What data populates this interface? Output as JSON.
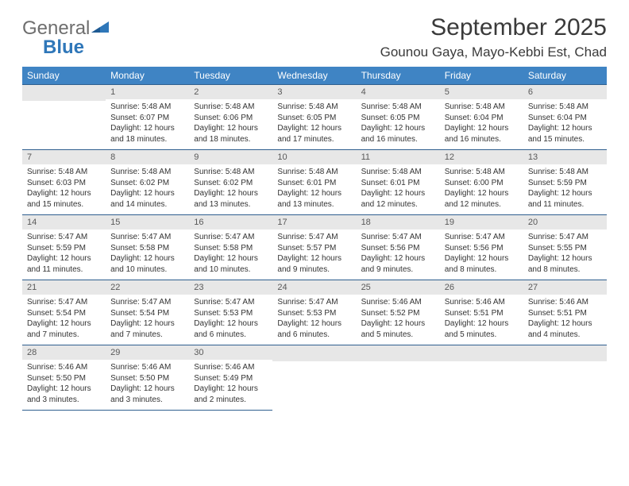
{
  "brand": {
    "word1": "General",
    "word2": "Blue"
  },
  "title": {
    "month": "September 2025",
    "location": "Gounou Gaya, Mayo-Kebbi Est, Chad"
  },
  "colors": {
    "header_bg": "#3f84c4",
    "header_text": "#ffffff",
    "daynum_bg": "#e7e7e7",
    "daynum_text": "#595959",
    "rule": "#2f5f8f",
    "body_text": "#333333",
    "logo_gray": "#6e6e6e",
    "logo_blue": "#2f77b9"
  },
  "weekdays": [
    "Sunday",
    "Monday",
    "Tuesday",
    "Wednesday",
    "Thursday",
    "Friday",
    "Saturday"
  ],
  "weeks": [
    [
      {
        "n": "",
        "sunrise": "",
        "sunset": "",
        "day": ""
      },
      {
        "n": "1",
        "sunrise": "Sunrise: 5:48 AM",
        "sunset": "Sunset: 6:07 PM",
        "day": "Daylight: 12 hours and 18 minutes."
      },
      {
        "n": "2",
        "sunrise": "Sunrise: 5:48 AM",
        "sunset": "Sunset: 6:06 PM",
        "day": "Daylight: 12 hours and 18 minutes."
      },
      {
        "n": "3",
        "sunrise": "Sunrise: 5:48 AM",
        "sunset": "Sunset: 6:05 PM",
        "day": "Daylight: 12 hours and 17 minutes."
      },
      {
        "n": "4",
        "sunrise": "Sunrise: 5:48 AM",
        "sunset": "Sunset: 6:05 PM",
        "day": "Daylight: 12 hours and 16 minutes."
      },
      {
        "n": "5",
        "sunrise": "Sunrise: 5:48 AM",
        "sunset": "Sunset: 6:04 PM",
        "day": "Daylight: 12 hours and 16 minutes."
      },
      {
        "n": "6",
        "sunrise": "Sunrise: 5:48 AM",
        "sunset": "Sunset: 6:04 PM",
        "day": "Daylight: 12 hours and 15 minutes."
      }
    ],
    [
      {
        "n": "7",
        "sunrise": "Sunrise: 5:48 AM",
        "sunset": "Sunset: 6:03 PM",
        "day": "Daylight: 12 hours and 15 minutes."
      },
      {
        "n": "8",
        "sunrise": "Sunrise: 5:48 AM",
        "sunset": "Sunset: 6:02 PM",
        "day": "Daylight: 12 hours and 14 minutes."
      },
      {
        "n": "9",
        "sunrise": "Sunrise: 5:48 AM",
        "sunset": "Sunset: 6:02 PM",
        "day": "Daylight: 12 hours and 13 minutes."
      },
      {
        "n": "10",
        "sunrise": "Sunrise: 5:48 AM",
        "sunset": "Sunset: 6:01 PM",
        "day": "Daylight: 12 hours and 13 minutes."
      },
      {
        "n": "11",
        "sunrise": "Sunrise: 5:48 AM",
        "sunset": "Sunset: 6:01 PM",
        "day": "Daylight: 12 hours and 12 minutes."
      },
      {
        "n": "12",
        "sunrise": "Sunrise: 5:48 AM",
        "sunset": "Sunset: 6:00 PM",
        "day": "Daylight: 12 hours and 12 minutes."
      },
      {
        "n": "13",
        "sunrise": "Sunrise: 5:48 AM",
        "sunset": "Sunset: 5:59 PM",
        "day": "Daylight: 12 hours and 11 minutes."
      }
    ],
    [
      {
        "n": "14",
        "sunrise": "Sunrise: 5:47 AM",
        "sunset": "Sunset: 5:59 PM",
        "day": "Daylight: 12 hours and 11 minutes."
      },
      {
        "n": "15",
        "sunrise": "Sunrise: 5:47 AM",
        "sunset": "Sunset: 5:58 PM",
        "day": "Daylight: 12 hours and 10 minutes."
      },
      {
        "n": "16",
        "sunrise": "Sunrise: 5:47 AM",
        "sunset": "Sunset: 5:58 PM",
        "day": "Daylight: 12 hours and 10 minutes."
      },
      {
        "n": "17",
        "sunrise": "Sunrise: 5:47 AM",
        "sunset": "Sunset: 5:57 PM",
        "day": "Daylight: 12 hours and 9 minutes."
      },
      {
        "n": "18",
        "sunrise": "Sunrise: 5:47 AM",
        "sunset": "Sunset: 5:56 PM",
        "day": "Daylight: 12 hours and 9 minutes."
      },
      {
        "n": "19",
        "sunrise": "Sunrise: 5:47 AM",
        "sunset": "Sunset: 5:56 PM",
        "day": "Daylight: 12 hours and 8 minutes."
      },
      {
        "n": "20",
        "sunrise": "Sunrise: 5:47 AM",
        "sunset": "Sunset: 5:55 PM",
        "day": "Daylight: 12 hours and 8 minutes."
      }
    ],
    [
      {
        "n": "21",
        "sunrise": "Sunrise: 5:47 AM",
        "sunset": "Sunset: 5:54 PM",
        "day": "Daylight: 12 hours and 7 minutes."
      },
      {
        "n": "22",
        "sunrise": "Sunrise: 5:47 AM",
        "sunset": "Sunset: 5:54 PM",
        "day": "Daylight: 12 hours and 7 minutes."
      },
      {
        "n": "23",
        "sunrise": "Sunrise: 5:47 AM",
        "sunset": "Sunset: 5:53 PM",
        "day": "Daylight: 12 hours and 6 minutes."
      },
      {
        "n": "24",
        "sunrise": "Sunrise: 5:47 AM",
        "sunset": "Sunset: 5:53 PM",
        "day": "Daylight: 12 hours and 6 minutes."
      },
      {
        "n": "25",
        "sunrise": "Sunrise: 5:46 AM",
        "sunset": "Sunset: 5:52 PM",
        "day": "Daylight: 12 hours and 5 minutes."
      },
      {
        "n": "26",
        "sunrise": "Sunrise: 5:46 AM",
        "sunset": "Sunset: 5:51 PM",
        "day": "Daylight: 12 hours and 5 minutes."
      },
      {
        "n": "27",
        "sunrise": "Sunrise: 5:46 AM",
        "sunset": "Sunset: 5:51 PM",
        "day": "Daylight: 12 hours and 4 minutes."
      }
    ],
    [
      {
        "n": "28",
        "sunrise": "Sunrise: 5:46 AM",
        "sunset": "Sunset: 5:50 PM",
        "day": "Daylight: 12 hours and 3 minutes."
      },
      {
        "n": "29",
        "sunrise": "Sunrise: 5:46 AM",
        "sunset": "Sunset: 5:50 PM",
        "day": "Daylight: 12 hours and 3 minutes."
      },
      {
        "n": "30",
        "sunrise": "Sunrise: 5:46 AM",
        "sunset": "Sunset: 5:49 PM",
        "day": "Daylight: 12 hours and 2 minutes."
      },
      {
        "n": "",
        "sunrise": "",
        "sunset": "",
        "day": ""
      },
      {
        "n": "",
        "sunrise": "",
        "sunset": "",
        "day": ""
      },
      {
        "n": "",
        "sunrise": "",
        "sunset": "",
        "day": ""
      },
      {
        "n": "",
        "sunrise": "",
        "sunset": "",
        "day": ""
      }
    ]
  ]
}
